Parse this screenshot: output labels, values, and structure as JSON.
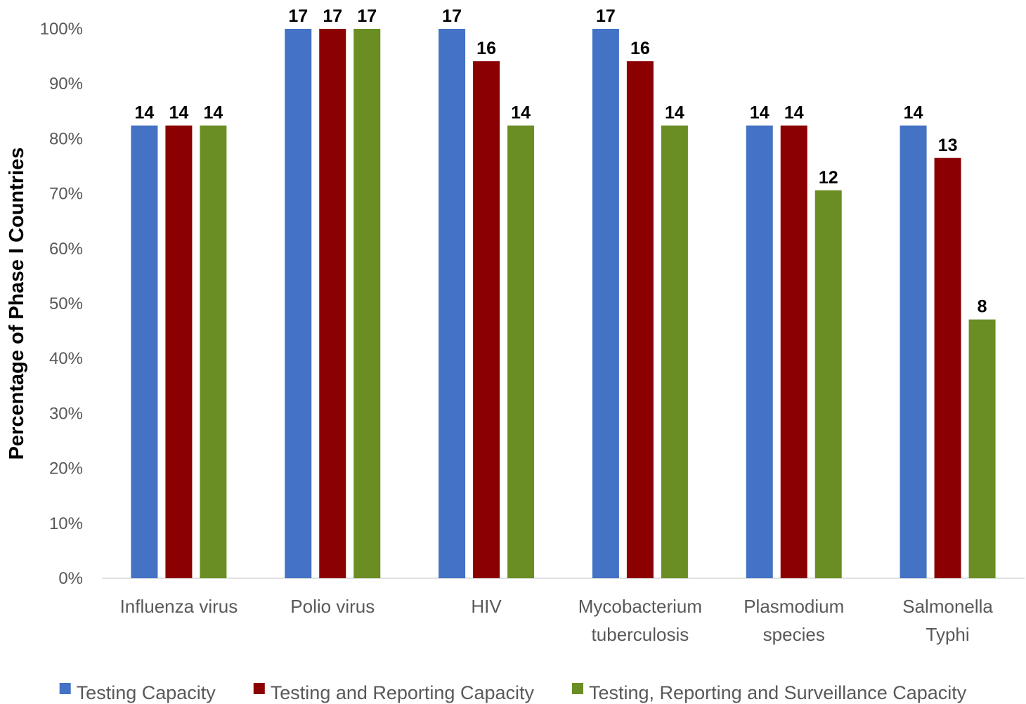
{
  "chart_data": {
    "type": "bar",
    "title": "",
    "xlabel": "",
    "ylabel": "Percentage of Phase I Countries",
    "ylim": [
      0,
      100
    ],
    "yticks": [
      "0%",
      "10%",
      "20%",
      "30%",
      "40%",
      "50%",
      "60%",
      "70%",
      "80%",
      "90%",
      "100%"
    ],
    "grid": false,
    "legend_position": "bottom",
    "categories": [
      [
        "Influenza virus"
      ],
      [
        "Polio virus"
      ],
      [
        "HIV"
      ],
      [
        "Mycobacterium",
        "tuberculosis"
      ],
      [
        "Plasmodium",
        "species"
      ],
      [
        "Salmonella",
        "Typhi"
      ]
    ],
    "series": [
      {
        "name": "Testing Capacity",
        "color": "#4472C4",
        "values": [
          82.4,
          100,
          100,
          100,
          82.4,
          82.4
        ],
        "labels": [
          "14",
          "17",
          "17",
          "17",
          "14",
          "14"
        ]
      },
      {
        "name": "Testing and Reporting Capacity",
        "color": "#8B0000",
        "values": [
          82.4,
          100,
          94.1,
          94.1,
          82.4,
          76.5
        ],
        "labels": [
          "14",
          "17",
          "16",
          "16",
          "14",
          "13"
        ]
      },
      {
        "name": "Testing, Reporting and Surveillance Capacity",
        "color": "#6A8E23",
        "values": [
          82.4,
          100,
          82.4,
          82.4,
          70.6,
          47.1
        ],
        "labels": [
          "14",
          "17",
          "14",
          "14",
          "12",
          "8"
        ]
      }
    ]
  }
}
